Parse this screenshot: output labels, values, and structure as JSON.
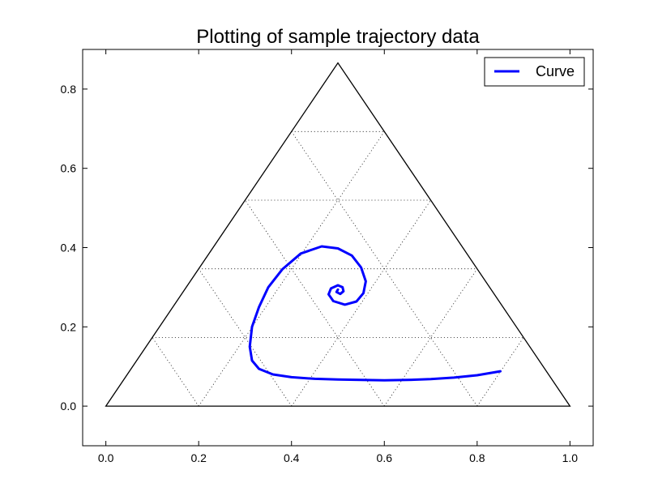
{
  "chart_data": {
    "type": "line",
    "title": "Plotting of sample trajectory data",
    "xlabel": "",
    "ylabel": "",
    "xlim": [
      -0.05,
      1.05
    ],
    "ylim": [
      -0.1,
      0.9
    ],
    "x_ticks": [
      0.0,
      0.2,
      0.4,
      0.6,
      0.8,
      1.0
    ],
    "y_ticks": [
      0.0,
      0.2,
      0.4,
      0.6,
      0.8
    ],
    "x_tick_labels": [
      "0.0",
      "0.2",
      "0.4",
      "0.6",
      "0.8",
      "1.0"
    ],
    "y_tick_labels": [
      "0.0",
      "0.2",
      "0.4",
      "0.6",
      "0.8"
    ],
    "grid": "ternary dotted grid",
    "legend": {
      "position": "top-right",
      "entries": [
        "Curve"
      ]
    },
    "triangle": [
      [
        0.0,
        0.0
      ],
      [
        1.0,
        0.0
      ],
      [
        0.5,
        0.866
      ]
    ],
    "series": [
      {
        "name": "Curve",
        "color": "#0000ff",
        "points": [
          [
            0.85,
            0.088
          ],
          [
            0.8,
            0.078
          ],
          [
            0.75,
            0.072
          ],
          [
            0.7,
            0.068
          ],
          [
            0.65,
            0.066
          ],
          [
            0.6,
            0.065
          ],
          [
            0.55,
            0.066
          ],
          [
            0.5,
            0.067
          ],
          [
            0.45,
            0.069
          ],
          [
            0.4,
            0.073
          ],
          [
            0.36,
            0.08
          ],
          [
            0.33,
            0.094
          ],
          [
            0.315,
            0.115
          ],
          [
            0.31,
            0.15
          ],
          [
            0.315,
            0.2
          ],
          [
            0.33,
            0.25
          ],
          [
            0.35,
            0.3
          ],
          [
            0.38,
            0.345
          ],
          [
            0.42,
            0.385
          ],
          [
            0.465,
            0.403
          ],
          [
            0.5,
            0.398
          ],
          [
            0.53,
            0.38
          ],
          [
            0.55,
            0.35
          ],
          [
            0.56,
            0.315
          ],
          [
            0.555,
            0.285
          ],
          [
            0.54,
            0.264
          ],
          [
            0.515,
            0.256
          ],
          [
            0.49,
            0.265
          ],
          [
            0.48,
            0.282
          ],
          [
            0.485,
            0.297
          ],
          [
            0.5,
            0.305
          ],
          [
            0.51,
            0.3
          ],
          [
            0.512,
            0.29
          ],
          [
            0.505,
            0.283
          ],
          [
            0.497,
            0.288
          ],
          [
            0.5,
            0.294
          ]
        ]
      }
    ]
  }
}
